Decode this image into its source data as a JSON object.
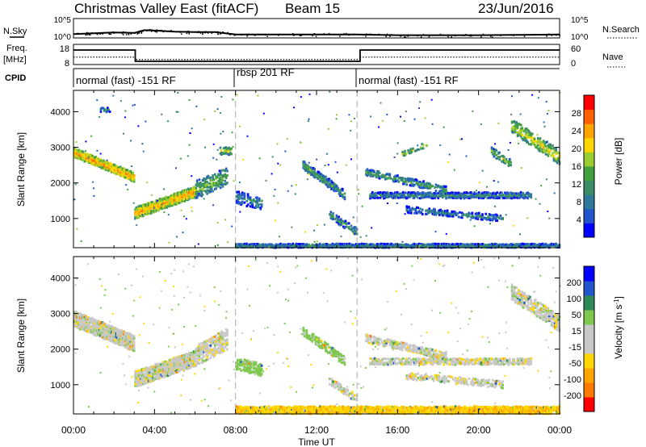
{
  "header": {
    "title": "Christmas Valley East (fitACF)",
    "beam": "Beam 15",
    "date": "23/Jun/2016"
  },
  "labels": {
    "nsky": "N.Sky",
    "nsearch": "N.Search",
    "freq": "Freq.",
    "freq_unit": "[MHz]",
    "nave": "Nave",
    "cpid": "CPID"
  },
  "cpid_segments": [
    {
      "label": "normal (fast) -151 RF"
    },
    {
      "label": "rbsp 201 RF"
    },
    {
      "label": "normal (fast) -151 RF"
    }
  ],
  "colors": {
    "power_scale": [
      "#0000ff",
      "#2255cc",
      "#2f7a9a",
      "#3a8c6a",
      "#40a040",
      "#9acd32",
      "#ffd700",
      "#ffa500",
      "#ff6000",
      "#ff0000"
    ],
    "velocity_scale": [
      "#ff0000",
      "#ff7a00",
      "#ffa500",
      "#ffd700",
      "#c8c8c8",
      "#c8c8c8",
      "#7ec850",
      "#2e8b57",
      "#2255cc",
      "#0000ff"
    ],
    "ground_scatter": "#c8c8c8"
  },
  "chart_data": [
    {
      "type": "line",
      "name": "noise-panel",
      "left_axis": {
        "label": "N.Sky",
        "ticks": [
          "10^5",
          "10^0"
        ]
      },
      "right_axis": {
        "label": "N.Search",
        "ticks": [
          "10^5",
          "10^0"
        ]
      },
      "x": [
        0,
        1,
        2,
        3,
        3.5,
        4,
        5,
        6,
        7,
        8,
        10,
        12,
        14,
        16,
        18,
        20,
        22,
        24
      ],
      "nsky_log": [
        1.0,
        1.2,
        1.4,
        1.3,
        2.0,
        1.9,
        1.6,
        1.5,
        1.5,
        0.9,
        0.9,
        0.9,
        0.9,
        0.7,
        0.7,
        0.7,
        0.8,
        0.9
      ]
    },
    {
      "type": "line",
      "name": "frequency-panel",
      "left_axis": {
        "label": "Freq. [MHz]",
        "ticks": [
          "18",
          "8"
        ],
        "range": [
          8,
          18
        ]
      },
      "right_axis": {
        "label": "Nave",
        "ticks": [
          "60",
          "0"
        ],
        "range": [
          0,
          60
        ]
      },
      "freq_steps": [
        {
          "x0": 0,
          "x1": 3.05,
          "value": 15.2
        },
        {
          "x0": 3.05,
          "x1": 14.15,
          "value": 9.6
        },
        {
          "x0": 14.15,
          "x1": 24,
          "value": 15.2
        }
      ],
      "nave_steps": [
        {
          "x0": 0,
          "x1": 3.05,
          "value": 22
        },
        {
          "x0": 3.05,
          "x1": 14.15,
          "value": 15
        },
        {
          "x0": 14.15,
          "x1": 24,
          "value": 22
        }
      ]
    },
    {
      "type": "heatmap",
      "name": "power-panel",
      "ylabel": "Slant Range [km]",
      "xlim": [
        0,
        24
      ],
      "ylim": [
        180,
        4600
      ],
      "yticks": [
        1000,
        2000,
        3000,
        4000
      ],
      "colorbar": {
        "label": "Power [dB]",
        "ticks": [
          4,
          8,
          12,
          16,
          20,
          24,
          28
        ],
        "range": [
          0,
          32
        ]
      },
      "dashed_lines": [
        8.0,
        14.0
      ],
      "features": [
        {
          "t0": 0.0,
          "t1": 3.0,
          "r0": 2850,
          "r1": 2150,
          "w": 260,
          "power": 25,
          "density": 0.95
        },
        {
          "t0": 3.0,
          "t1": 6.0,
          "r0": 1150,
          "r1": 1750,
          "w": 320,
          "power": 24,
          "density": 0.95
        },
        {
          "t0": 6.0,
          "t1": 7.6,
          "r0": 1800,
          "r1": 2200,
          "w": 500,
          "power": 16,
          "density": 0.5
        },
        {
          "t0": 7.2,
          "t1": 7.8,
          "r0": 2900,
          "r1": 2900,
          "w": 220,
          "power": 18,
          "density": 0.5
        },
        {
          "t0": 1.3,
          "t1": 1.8,
          "r0": 4050,
          "r1": 4050,
          "w": 120,
          "power": 12,
          "density": 0.4
        },
        {
          "t0": 8.0,
          "t1": 9.3,
          "r0": 1600,
          "r1": 1400,
          "w": 350,
          "power": 11,
          "density": 0.45
        },
        {
          "t0": 11.3,
          "t1": 13.4,
          "r0": 2500,
          "r1": 1650,
          "w": 250,
          "power": 14,
          "density": 0.6
        },
        {
          "t0": 12.6,
          "t1": 14.0,
          "r0": 1100,
          "r1": 600,
          "w": 220,
          "power": 13,
          "density": 0.5
        },
        {
          "t0": 14.6,
          "t1": 22.6,
          "r0": 1650,
          "r1": 1650,
          "w": 170,
          "power": 12,
          "density": 0.7
        },
        {
          "t0": 14.4,
          "t1": 18.4,
          "r0": 2300,
          "r1": 1800,
          "w": 200,
          "power": 14,
          "density": 0.6
        },
        {
          "t0": 16.4,
          "t1": 21.2,
          "r0": 1250,
          "r1": 1000,
          "w": 180,
          "power": 11,
          "density": 0.45
        },
        {
          "t0": 16.2,
          "t1": 17.5,
          "r0": 2800,
          "r1": 3100,
          "w": 140,
          "power": 18,
          "density": 0.4
        },
        {
          "t0": 21.6,
          "t1": 24.0,
          "r0": 3600,
          "r1": 2700,
          "w": 400,
          "power": 20,
          "density": 0.5
        },
        {
          "t0": 20.6,
          "t1": 21.6,
          "r0": 2900,
          "r1": 2500,
          "w": 250,
          "power": 16,
          "density": 0.4
        },
        {
          "t0": 8.0,
          "t1": 24.0,
          "r0": 230,
          "r1": 230,
          "w": 120,
          "power": 12,
          "density": 0.9
        }
      ]
    },
    {
      "type": "heatmap",
      "name": "velocity-panel",
      "xlabel": "Time UT",
      "ylabel": "Slant Range [km]",
      "xlim": [
        0,
        24
      ],
      "ylim": [
        180,
        4600
      ],
      "xticks": [
        "00:00",
        "04:00",
        "08:00",
        "12:00",
        "16:00",
        "20:00",
        "00:00"
      ],
      "yticks": [
        1000,
        2000,
        3000,
        4000
      ],
      "colorbar": {
        "label": "Velocity [m s^-1]",
        "ticks": [
          200,
          100,
          50,
          15,
          -15,
          -50,
          -100,
          -200
        ],
        "range": [
          -250,
          250
        ]
      },
      "dashed_lines": [
        8.0,
        14.0
      ],
      "features": [
        {
          "t0": 0.0,
          "t1": 3.0,
          "r0": 2850,
          "r1": 2150,
          "w": 450,
          "velocity": 0,
          "density": 0.95
        },
        {
          "t0": 3.0,
          "t1": 6.0,
          "r0": 1150,
          "r1": 1750,
          "w": 450,
          "velocity": 0,
          "density": 0.85
        },
        {
          "t0": 6.0,
          "t1": 7.6,
          "r0": 1800,
          "r1": 2300,
          "w": 600,
          "velocity": 0,
          "density": 0.5
        },
        {
          "t0": 8.0,
          "t1": 9.3,
          "r0": 1600,
          "r1": 1400,
          "w": 350,
          "velocity": 30,
          "density": 0.5
        },
        {
          "t0": 11.3,
          "t1": 13.4,
          "r0": 2500,
          "r1": 1650,
          "w": 250,
          "velocity": 30,
          "density": 0.5
        },
        {
          "t0": 12.6,
          "t1": 14.0,
          "r0": 1100,
          "r1": 600,
          "w": 220,
          "velocity": 0,
          "density": 0.5
        },
        {
          "t0": 14.6,
          "t1": 22.6,
          "r0": 1650,
          "r1": 1650,
          "w": 180,
          "velocity": 0,
          "density": 0.7
        },
        {
          "t0": 14.4,
          "t1": 18.4,
          "r0": 2300,
          "r1": 1800,
          "w": 220,
          "velocity": 0,
          "density": 0.6
        },
        {
          "t0": 16.4,
          "t1": 21.2,
          "r0": 1250,
          "r1": 1000,
          "w": 200,
          "velocity": 0,
          "density": 0.5
        },
        {
          "t0": 21.6,
          "t1": 24.0,
          "r0": 3600,
          "r1": 2700,
          "w": 450,
          "velocity": 0,
          "density": 0.6
        },
        {
          "t0": 8.0,
          "t1": 24.0,
          "r0": 280,
          "r1": 280,
          "w": 220,
          "velocity": -40,
          "density": 0.9
        }
      ]
    }
  ]
}
